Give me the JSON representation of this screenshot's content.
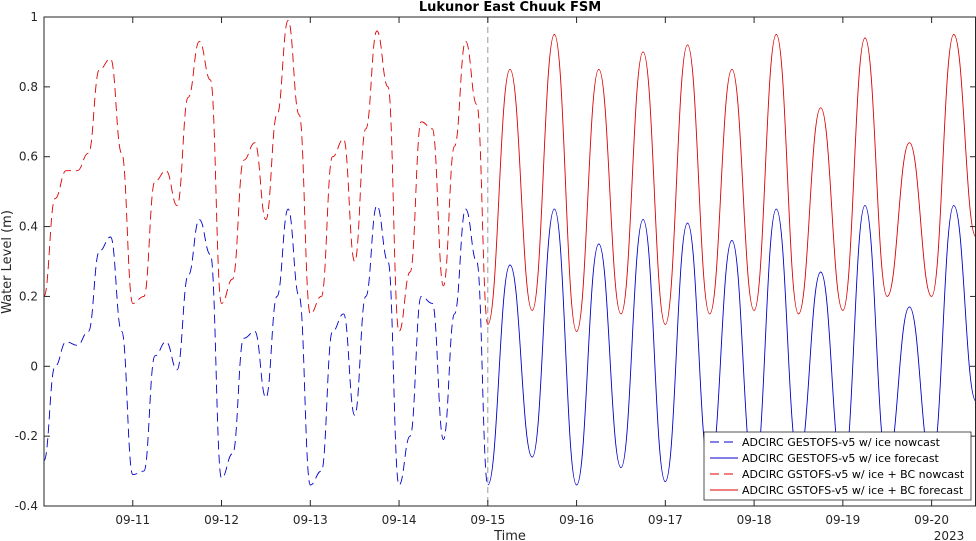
{
  "chart_data": {
    "type": "line",
    "title": "Lukunor East Chuuk FSM",
    "xlabel": "Time",
    "ylabel": "Water Level (m)",
    "year_label": "2023",
    "xlim": [
      "2023-09-10T00:00",
      "2023-09-20T12:00"
    ],
    "ylim": [
      -0.4,
      1.0
    ],
    "yticks": [
      -0.4,
      -0.2,
      0,
      0.2,
      0.4,
      0.6,
      0.8,
      1
    ],
    "ytick_labels": [
      "-0.4",
      "-0.2",
      "0",
      "0.2",
      "0.4",
      "0.6",
      "0.8",
      "1"
    ],
    "xticks": [
      "2023-09-11",
      "2023-09-12",
      "2023-09-13",
      "2023-09-14",
      "2023-09-15",
      "2023-09-16",
      "2023-09-17",
      "2023-09-18",
      "2023-09-19",
      "2023-09-20"
    ],
    "xtick_labels": [
      "09-11",
      "09-12",
      "09-13",
      "09-14",
      "09-15",
      "09-16",
      "09-17",
      "09-18",
      "09-19",
      "09-20"
    ],
    "nowcast_forecast_boundary": "2023-09-15T00:00",
    "grid": false,
    "legend_position": "bottom-right",
    "series": [
      {
        "name": "ADCIRC GESTOFS-v5 w/ ice nowcast",
        "color": "#0000cc",
        "dash": "dashed",
        "x": [
          "2023-09-10T00:00",
          "2023-09-10T03:00",
          "2023-09-10T06:00",
          "2023-09-10T09:00",
          "2023-09-10T12:00",
          "2023-09-10T15:00",
          "2023-09-10T18:00",
          "2023-09-10T21:00",
          "2023-09-11T00:00",
          "2023-09-11T03:00",
          "2023-09-11T06:00",
          "2023-09-11T09:00",
          "2023-09-11T12:00",
          "2023-09-11T15:00",
          "2023-09-11T18:00",
          "2023-09-11T21:00",
          "2023-09-12T00:00",
          "2023-09-12T03:00",
          "2023-09-12T06:00",
          "2023-09-12T09:00",
          "2023-09-12T12:00",
          "2023-09-12T15:00",
          "2023-09-12T18:00",
          "2023-09-12T21:00",
          "2023-09-13T00:00",
          "2023-09-13T03:00",
          "2023-09-13T06:00",
          "2023-09-13T09:00",
          "2023-09-13T12:00",
          "2023-09-13T15:00",
          "2023-09-13T18:00",
          "2023-09-13T21:00",
          "2023-09-14T00:00",
          "2023-09-14T03:00",
          "2023-09-14T06:00",
          "2023-09-14T09:00",
          "2023-09-14T12:00",
          "2023-09-14T15:00",
          "2023-09-14T18:00",
          "2023-09-14T21:00",
          "2023-09-15T00:00"
        ],
        "y": [
          -0.27,
          0.0,
          0.07,
          0.06,
          0.1,
          0.33,
          0.37,
          0.1,
          -0.31,
          -0.3,
          0.03,
          0.07,
          -0.01,
          0.26,
          0.42,
          0.32,
          -0.32,
          -0.25,
          0.08,
          0.1,
          -0.09,
          0.2,
          0.45,
          0.2,
          -0.34,
          -0.3,
          0.1,
          0.15,
          -0.14,
          0.2,
          0.46,
          0.3,
          -0.34,
          -0.2,
          0.2,
          0.18,
          -0.21,
          0.15,
          0.45,
          0.3,
          -0.34
        ]
      },
      {
        "name": "ADCIRC GESTOFS-v5 w/ ice forecast",
        "color": "#0000cc",
        "dash": "solid",
        "x": [
          "2023-09-15T00:00",
          "2023-09-15T06:00",
          "2023-09-15T12:00",
          "2023-09-15T18:00",
          "2023-09-16T00:00",
          "2023-09-16T06:00",
          "2023-09-16T12:00",
          "2023-09-16T18:00",
          "2023-09-17T00:00",
          "2023-09-17T06:00",
          "2023-09-17T12:00",
          "2023-09-17T18:00",
          "2023-09-18T00:00",
          "2023-09-18T06:00",
          "2023-09-18T12:00",
          "2023-09-18T18:00",
          "2023-09-19T00:00",
          "2023-09-19T06:00",
          "2023-09-19T12:00",
          "2023-09-19T18:00",
          "2023-09-20T00:00",
          "2023-09-20T06:00",
          "2023-09-20T12:00"
        ],
        "y": [
          -0.34,
          0.29,
          -0.26,
          0.45,
          -0.34,
          0.35,
          -0.29,
          0.42,
          -0.33,
          0.41,
          -0.3,
          0.36,
          -0.32,
          0.45,
          -0.27,
          0.27,
          -0.31,
          0.46,
          -0.28,
          0.17,
          -0.28,
          0.46,
          -0.1
        ]
      },
      {
        "name": "ADCIRC GSTOFS-v5 w/ ice + BC nowcast",
        "color": "#dd0000",
        "dash": "dashed",
        "x": [
          "2023-09-10T00:00",
          "2023-09-10T03:00",
          "2023-09-10T06:00",
          "2023-09-10T09:00",
          "2023-09-10T12:00",
          "2023-09-10T15:00",
          "2023-09-10T18:00",
          "2023-09-10T21:00",
          "2023-09-11T00:00",
          "2023-09-11T03:00",
          "2023-09-11T06:00",
          "2023-09-11T09:00",
          "2023-09-11T12:00",
          "2023-09-11T15:00",
          "2023-09-11T18:00",
          "2023-09-11T21:00",
          "2023-09-12T00:00",
          "2023-09-12T03:00",
          "2023-09-12T06:00",
          "2023-09-12T09:00",
          "2023-09-12T12:00",
          "2023-09-12T15:00",
          "2023-09-12T18:00",
          "2023-09-12T21:00",
          "2023-09-13T00:00",
          "2023-09-13T03:00",
          "2023-09-13T06:00",
          "2023-09-13T09:00",
          "2023-09-13T12:00",
          "2023-09-13T15:00",
          "2023-09-13T18:00",
          "2023-09-13T21:00",
          "2023-09-14T00:00",
          "2023-09-14T03:00",
          "2023-09-14T06:00",
          "2023-09-14T09:00",
          "2023-09-14T12:00",
          "2023-09-14T15:00",
          "2023-09-14T18:00",
          "2023-09-14T21:00",
          "2023-09-15T00:00"
        ],
        "y": [
          0.2,
          0.48,
          0.56,
          0.56,
          0.61,
          0.85,
          0.88,
          0.61,
          0.18,
          0.2,
          0.53,
          0.56,
          0.46,
          0.77,
          0.93,
          0.82,
          0.18,
          0.25,
          0.59,
          0.64,
          0.42,
          0.72,
          0.99,
          0.72,
          0.15,
          0.2,
          0.6,
          0.65,
          0.3,
          0.68,
          0.96,
          0.8,
          0.1,
          0.27,
          0.7,
          0.68,
          0.23,
          0.63,
          0.93,
          0.75,
          0.12
        ]
      },
      {
        "name": "ADCIRC GSTOFS-v5 w/ ice + BC forecast",
        "color": "#dd0000",
        "dash": "solid",
        "x": [
          "2023-09-15T00:00",
          "2023-09-15T06:00",
          "2023-09-15T12:00",
          "2023-09-15T18:00",
          "2023-09-16T00:00",
          "2023-09-16T06:00",
          "2023-09-16T12:00",
          "2023-09-16T18:00",
          "2023-09-17T00:00",
          "2023-09-17T06:00",
          "2023-09-17T12:00",
          "2023-09-17T18:00",
          "2023-09-18T00:00",
          "2023-09-18T06:00",
          "2023-09-18T12:00",
          "2023-09-18T18:00",
          "2023-09-19T00:00",
          "2023-09-19T06:00",
          "2023-09-19T12:00",
          "2023-09-19T18:00",
          "2023-09-20T00:00",
          "2023-09-20T06:00",
          "2023-09-20T12:00"
        ],
        "y": [
          0.12,
          0.85,
          0.16,
          0.95,
          0.1,
          0.85,
          0.15,
          0.9,
          0.12,
          0.92,
          0.15,
          0.85,
          0.16,
          0.95,
          0.15,
          0.74,
          0.16,
          0.94,
          0.2,
          0.64,
          0.2,
          0.95,
          0.37
        ]
      }
    ]
  }
}
